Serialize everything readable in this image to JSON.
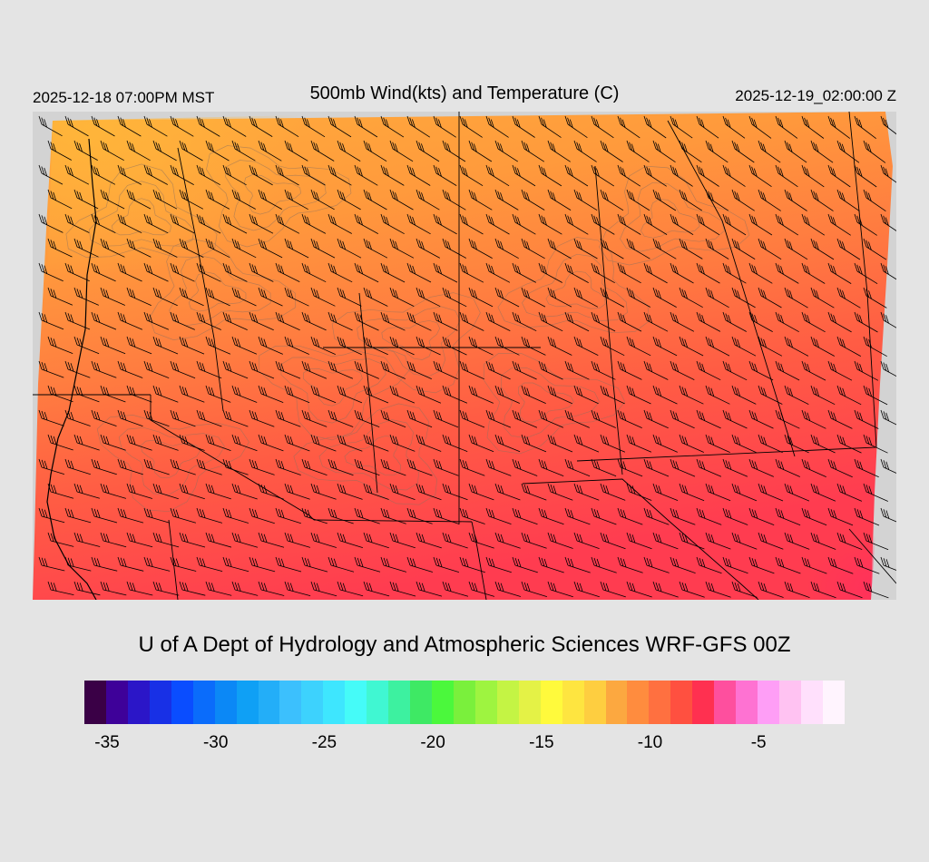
{
  "header": {
    "local_time": "2025-12-18 07:00PM MST",
    "title": "500mb Wind(kts) and Temperature (C)",
    "utc_time": "2025-12-19_02:00:00 Z"
  },
  "footer": {
    "credit": "U of A Dept of Hydrology and Atmospheric Sciences WRF-GFS 00Z"
  },
  "colorbar": {
    "colors": [
      "#3a0046",
      "#3e0199",
      "#2b16c8",
      "#1830e6",
      "#0a4dff",
      "#0a6cfb",
      "#0b88f6",
      "#0fa0f5",
      "#23aef8",
      "#3cc0fd",
      "#3dd2fd",
      "#3ee6fe",
      "#45fbf8",
      "#40f7d2",
      "#3df1a0",
      "#3ee964",
      "#4bf83c",
      "#7af03c",
      "#9ef440",
      "#c4f444",
      "#e4f246",
      "#fffa3c",
      "#fee540",
      "#fece40",
      "#fca840",
      "#ff8c3e",
      "#ff7040",
      "#ff5040",
      "#ff3050",
      "#fe4f9e",
      "#fe72d2",
      "#fe9ef6",
      "#ffc2f2",
      "#ffe0fc",
      "#fff4fe"
    ],
    "tick_labels": [
      "-35",
      "-30",
      "-25",
      "-20",
      "-15",
      "-10",
      "-5"
    ]
  },
  "map": {
    "field": "500mb temperature (C) with wind barbs (kts)",
    "temperature_colors": [
      "#ffad40",
      "#ff8f3e",
      "#ff7842",
      "#ff5e44",
      "#ff4a4a",
      "#ff3a52"
    ],
    "boundary_color": "#000000",
    "contour_color": "#7a7a7a",
    "barb_color": "#000000"
  }
}
